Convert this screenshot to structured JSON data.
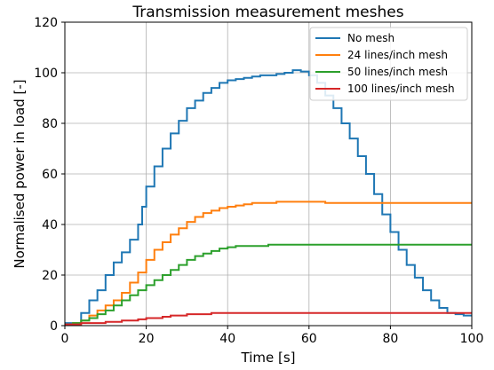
{
  "chart_data": {
    "type": "line",
    "title": "Transmission measurement meshes",
    "xlabel": "Time [s]",
    "ylabel": "Normalised power in load [-]",
    "xlim": [
      0,
      100
    ],
    "ylim": [
      0,
      120
    ],
    "xticks": [
      0,
      20,
      40,
      60,
      80,
      100
    ],
    "yticks": [
      0,
      20,
      40,
      60,
      80,
      100,
      120
    ],
    "grid": true,
    "legend_position": "top-right",
    "series": [
      {
        "name": "No mesh",
        "color": "#1f77b4",
        "x": [
          0,
          2,
          4,
          6,
          8,
          10,
          12,
          14,
          16,
          18,
          19,
          20,
          22,
          24,
          26,
          28,
          30,
          32,
          34,
          36,
          38,
          40,
          42,
          44,
          46,
          48,
          50,
          52,
          54,
          56,
          58,
          60,
          62,
          64,
          66,
          68,
          70,
          72,
          74,
          76,
          78,
          80,
          82,
          84,
          86,
          88,
          90,
          92,
          94,
          96,
          98,
          100
        ],
        "y": [
          1,
          1,
          5,
          10,
          14,
          20,
          25,
          29,
          34,
          40,
          47,
          55,
          63,
          70,
          76,
          81,
          86,
          89,
          92,
          94,
          96,
          97,
          97.5,
          98,
          98.5,
          99,
          99,
          99.5,
          100,
          101,
          100.5,
          99,
          96,
          91,
          86,
          80,
          74,
          67,
          60,
          52,
          44,
          37,
          30,
          24,
          19,
          14,
          10,
          7,
          5,
          4.5,
          4,
          4
        ]
      },
      {
        "name": "24 lines/inch mesh",
        "color": "#ff7f0e",
        "x": [
          0,
          2,
          4,
          6,
          8,
          10,
          12,
          14,
          16,
          18,
          20,
          22,
          24,
          26,
          28,
          30,
          32,
          34,
          36,
          38,
          40,
          42,
          44,
          46,
          48,
          50,
          52,
          54,
          56,
          58,
          60,
          62,
          64,
          66,
          68,
          70,
          72,
          74,
          76,
          78,
          80,
          82,
          84,
          86,
          88,
          90,
          92,
          94,
          96,
          98,
          100
        ],
        "y": [
          0.5,
          1,
          2,
          4,
          6,
          8,
          10,
          13,
          17,
          21,
          26,
          30,
          33,
          36,
          38.5,
          41,
          43,
          44.5,
          45.5,
          46.5,
          47,
          47.5,
          48,
          48.5,
          48.5,
          48.5,
          49,
          49,
          49,
          49,
          49,
          49,
          48.5,
          48.5,
          48.5,
          48.5,
          48.5,
          48.5,
          48.5,
          48.5,
          48.5,
          48.5,
          48.5,
          48.5,
          48.5,
          48.5,
          48.5,
          48.5,
          48.5,
          48.5,
          48.5
        ]
      },
      {
        "name": "50 lines/inch mesh",
        "color": "#2ca02c",
        "x": [
          0,
          2,
          4,
          6,
          8,
          10,
          12,
          14,
          16,
          18,
          20,
          22,
          24,
          26,
          28,
          30,
          32,
          34,
          36,
          38,
          40,
          42,
          44,
          46,
          48,
          50,
          52,
          54,
          56,
          58,
          60,
          62,
          64,
          66,
          68,
          70,
          72,
          74,
          76,
          78,
          80,
          82,
          84,
          86,
          88,
          90,
          92,
          94,
          96,
          98,
          100
        ],
        "y": [
          0.5,
          1,
          2,
          3,
          4.5,
          6,
          8,
          10,
          12,
          14,
          16,
          18,
          20,
          22,
          24,
          26,
          27.5,
          28.5,
          29.5,
          30.5,
          31,
          31.5,
          31.5,
          31.5,
          31.5,
          32,
          32,
          32,
          32,
          32,
          32,
          32,
          32,
          32,
          32,
          32,
          32,
          32,
          32,
          32,
          32,
          32,
          32,
          32,
          32,
          32,
          32,
          32,
          32,
          32,
          32
        ]
      },
      {
        "name": "100 lines/inch mesh",
        "color": "#d62728",
        "x": [
          0,
          2,
          4,
          6,
          8,
          10,
          12,
          14,
          16,
          18,
          20,
          22,
          24,
          26,
          28,
          30,
          32,
          34,
          36,
          38,
          40,
          42,
          44,
          46,
          48,
          50,
          52,
          54,
          56,
          58,
          60,
          62,
          64,
          66,
          68,
          70,
          72,
          74,
          76,
          78,
          80,
          82,
          84,
          86,
          88,
          90,
          92,
          94,
          96,
          98,
          100
        ],
        "y": [
          0.5,
          0.5,
          1,
          1,
          1,
          1.5,
          1.5,
          2,
          2,
          2.5,
          3,
          3,
          3.5,
          4,
          4,
          4.5,
          4.5,
          4.5,
          5,
          5,
          5,
          5,
          5,
          5,
          5,
          5,
          5,
          5,
          5,
          5,
          5,
          5,
          5,
          5,
          5,
          5,
          5,
          5,
          5,
          5,
          5,
          5,
          5,
          5,
          5,
          5,
          5,
          5,
          5,
          5,
          5
        ]
      }
    ]
  }
}
